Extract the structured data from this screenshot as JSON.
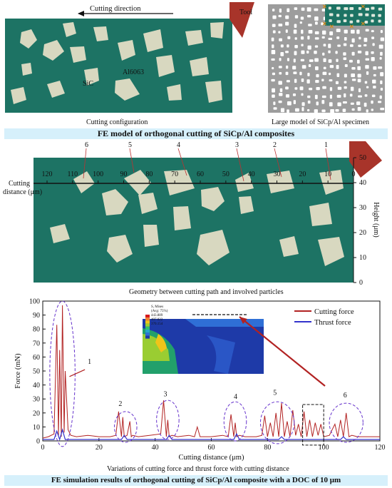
{
  "panel_a": {
    "cutting_direction": "Cutting direction",
    "tool_label": "Tool",
    "matrix_label": "Al6063",
    "particle_label": "SiC",
    "caption_left": "Cutting configuration",
    "caption_right": "Large model of SiCp/Al specimen",
    "band_title": "FE model of orthogonal cutting of SiCp/Al composites"
  },
  "panel_b": {
    "axis_title_line1": "Cutting",
    "axis_title_line2": "distance (μm)",
    "top_ticks": [
      "120",
      "110",
      "100",
      "90",
      "80",
      "70",
      "60",
      "50",
      "40",
      "30",
      "20",
      "10",
      "0"
    ],
    "particle_numbers": [
      "6",
      "5",
      "4",
      "3",
      "2",
      "1"
    ],
    "height_ticks": [
      "0",
      "10",
      "20",
      "30",
      "40",
      "50"
    ],
    "height_label": "Height (μm)",
    "caption": "Geometry between cutting path and involved particles"
  },
  "panel_c": {
    "caption": "Variations of cutting force and thrust force with cutting distance",
    "band_title": "FE simulation results of orthogonal cutting of SiCp/Al composite with a DOC of 10 μm",
    "inset_legend": [
      "S, Mises",
      "(Avg: 75%)",
      "443.889",
      "407.022",
      "370.154"
    ]
  },
  "chart_data": {
    "type": "line",
    "xlabel": "Cutting distance (μm)",
    "ylabel": "Force (mN)",
    "xlim": [
      0,
      120
    ],
    "ylim": [
      0,
      100
    ],
    "xticks": [
      0,
      20,
      40,
      60,
      80,
      100,
      120
    ],
    "yticks": [
      0,
      10,
      20,
      30,
      40,
      50,
      60,
      70,
      80,
      90,
      100
    ],
    "legend_position": "top-right",
    "series": [
      {
        "name": "Cutting force",
        "color": "#b22222",
        "x": [
          0,
          2,
          4,
          5,
          5.6,
          6,
          6.6,
          7,
          7.6,
          8,
          9,
          10,
          12,
          16,
          20,
          24,
          26,
          27,
          28,
          28.5,
          29,
          30,
          31,
          31.5,
          32,
          34,
          38,
          42,
          43,
          44,
          44.5,
          45,
          46,
          48,
          52,
          54,
          55,
          56,
          60,
          64,
          66,
          67,
          68,
          68.5,
          69,
          70,
          72,
          76,
          78,
          79,
          80,
          81,
          82,
          83,
          84,
          85,
          86,
          87,
          88,
          89,
          90,
          91,
          92,
          93,
          94,
          95,
          96,
          97,
          98,
          99,
          100,
          102,
          104,
          105,
          106,
          107,
          108,
          109,
          110,
          112,
          116,
          120
        ],
        "y": [
          2,
          3,
          5,
          83,
          4,
          65,
          3,
          97,
          6,
          50,
          8,
          4,
          3,
          4,
          3,
          3,
          4,
          21,
          3,
          17,
          3,
          4,
          14,
          3,
          4,
          3,
          4,
          5,
          29,
          3,
          15,
          3,
          4,
          3,
          4,
          3,
          10,
          3,
          3,
          4,
          3,
          19,
          3,
          13,
          3,
          4,
          3,
          3,
          4,
          18,
          3,
          13,
          3,
          20,
          3,
          27,
          3,
          14,
          3,
          22,
          4,
          12,
          3,
          21,
          3,
          15,
          3,
          13,
          4,
          12,
          3,
          4,
          12,
          3,
          15,
          3,
          20,
          3,
          4,
          3,
          3,
          3
        ]
      },
      {
        "name": "Thrust force",
        "color": "#3333cc",
        "x": [
          0,
          4,
          5,
          6,
          7,
          8,
          10,
          20,
          28,
          29,
          30,
          40,
          44,
          45,
          46,
          60,
          68,
          69,
          70,
          80,
          84,
          85,
          86,
          100,
          106,
          107,
          108,
          120
        ],
        "y": [
          1,
          1,
          7,
          1,
          8,
          1,
          1,
          1,
          1,
          4,
          1,
          1,
          1,
          4,
          1,
          1,
          1,
          5,
          1,
          1,
          1,
          3,
          1,
          1,
          1,
          3,
          1,
          1
        ]
      }
    ],
    "annotations": [
      "1",
      "2",
      "3",
      "4",
      "5",
      "6"
    ]
  }
}
